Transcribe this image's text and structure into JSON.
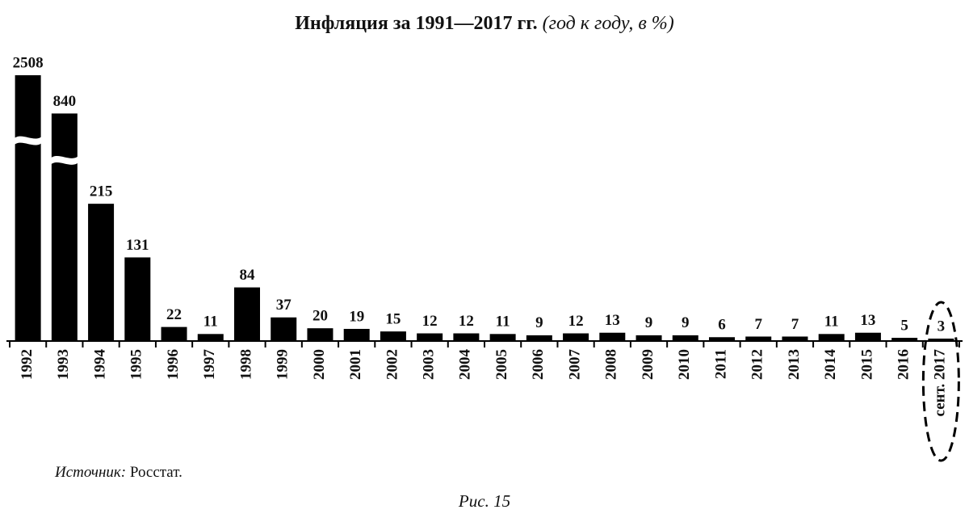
{
  "chart_data": {
    "type": "bar",
    "title": "Инфляция за 1991—2017 гг.",
    "subtitle": "(год к году, в %)",
    "categories": [
      "1992",
      "1993",
      "1994",
      "1995",
      "1996",
      "1997",
      "1998",
      "1999",
      "2000",
      "2001",
      "2002",
      "2003",
      "2004",
      "2005",
      "2006",
      "2007",
      "2008",
      "2009",
      "2010",
      "2011",
      "2012",
      "2013",
      "2014",
      "2015",
      "2016",
      "сент. 2017"
    ],
    "values": [
      2508,
      840,
      215,
      131,
      22,
      11,
      84,
      37,
      20,
      19,
      15,
      12,
      12,
      11,
      9,
      12,
      13,
      9,
      9,
      6,
      7,
      7,
      11,
      13,
      5,
      3
    ],
    "color": "#000000",
    "source_label": "Источник:",
    "source": "Росстат.",
    "figure_label": "Рис. 15"
  }
}
